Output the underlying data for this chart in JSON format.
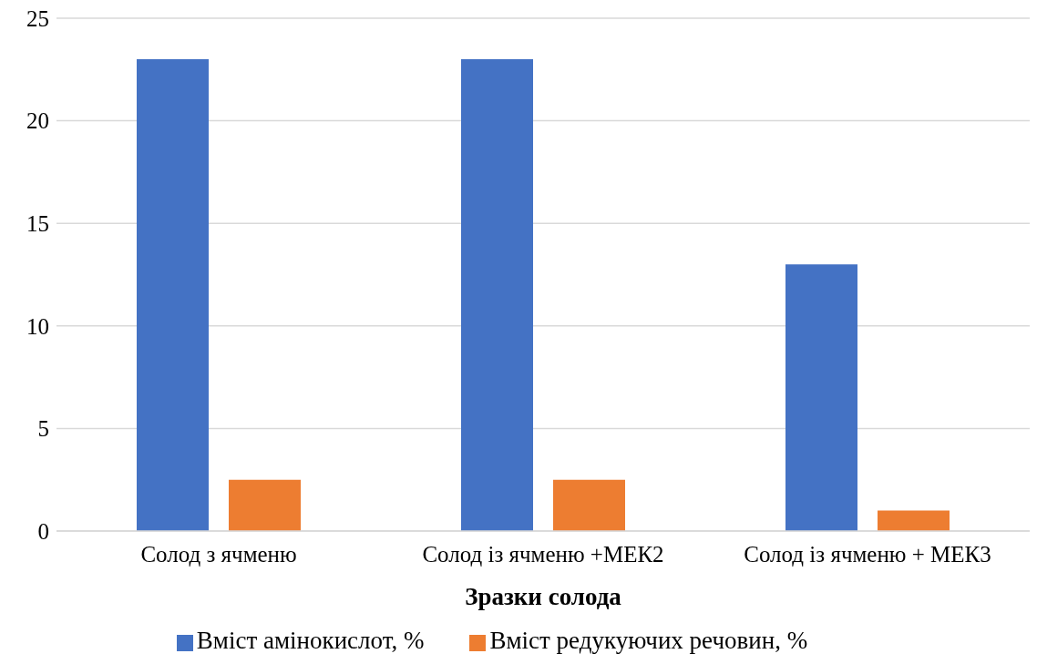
{
  "chart_data": {
    "type": "bar",
    "xlabel": "Зразки солода",
    "categories": [
      "Солод з ячменю",
      "Солод із ячменю +МЕК2",
      "Солод із ячменю + МЕК3"
    ],
    "series": [
      {
        "name": "Вміст амінокислот, %",
        "color": "#4472c4",
        "values": [
          23,
          23,
          13
        ]
      },
      {
        "name": "Вміст редукуючих речовин, %",
        "color": "#ed7d31",
        "values": [
          2.5,
          2.5,
          1
        ]
      }
    ],
    "ylim": [
      0,
      25
    ],
    "yticks": [
      0,
      5,
      10,
      15,
      20,
      25
    ],
    "grid": "y",
    "legend": "bottom"
  }
}
